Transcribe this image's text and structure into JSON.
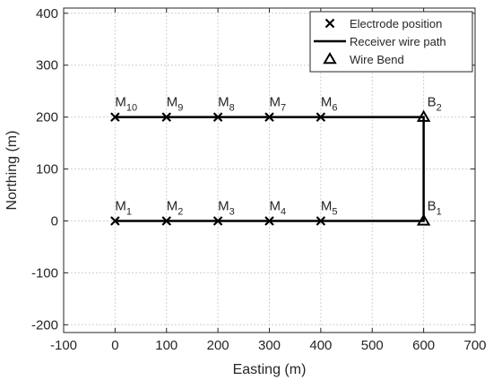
{
  "chart_data": {
    "type": "scatter",
    "xlabel": "Easting (m)",
    "ylabel": "Northing (m)",
    "xlim": [
      -100,
      700
    ],
    "ylim": [
      -215,
      410
    ],
    "xticks": [
      -100,
      0,
      100,
      200,
      300,
      400,
      500,
      600,
      700
    ],
    "yticks": [
      -200,
      -100,
      0,
      100,
      200,
      300,
      400
    ],
    "grid": true,
    "legend_position": "top-right",
    "colors": {
      "line": "#000000",
      "grid": "#d0d0d0",
      "axes": "#262626"
    },
    "legend": [
      {
        "marker": "x",
        "label": "Electrode position"
      },
      {
        "marker": "line",
        "label": "Receiver wire path"
      },
      {
        "marker": "triangle",
        "label": "Wire Bend"
      }
    ],
    "series": [
      {
        "name": "Electrode position",
        "marker": "x",
        "points": [
          {
            "x": 0,
            "y": 0,
            "label": "M",
            "sub": "1"
          },
          {
            "x": 100,
            "y": 0,
            "label": "M",
            "sub": "2"
          },
          {
            "x": 200,
            "y": 0,
            "label": "M",
            "sub": "3"
          },
          {
            "x": 300,
            "y": 0,
            "label": "M",
            "sub": "4"
          },
          {
            "x": 400,
            "y": 0,
            "label": "M",
            "sub": "5"
          },
          {
            "x": 400,
            "y": 200,
            "label": "M",
            "sub": "6"
          },
          {
            "x": 300,
            "y": 200,
            "label": "M",
            "sub": "7"
          },
          {
            "x": 200,
            "y": 200,
            "label": "M",
            "sub": "8"
          },
          {
            "x": 100,
            "y": 200,
            "label": "M",
            "sub": "9"
          },
          {
            "x": 0,
            "y": 200,
            "label": "M",
            "sub": "10"
          }
        ]
      },
      {
        "name": "Receiver wire path",
        "marker": "line",
        "x": [
          0,
          600,
          600,
          0
        ],
        "y": [
          0,
          0,
          200,
          200
        ]
      },
      {
        "name": "Wire Bend",
        "marker": "triangle",
        "points": [
          {
            "x": 600,
            "y": 0,
            "label": "B",
            "sub": "1"
          },
          {
            "x": 600,
            "y": 200,
            "label": "B",
            "sub": "2"
          }
        ]
      }
    ]
  }
}
